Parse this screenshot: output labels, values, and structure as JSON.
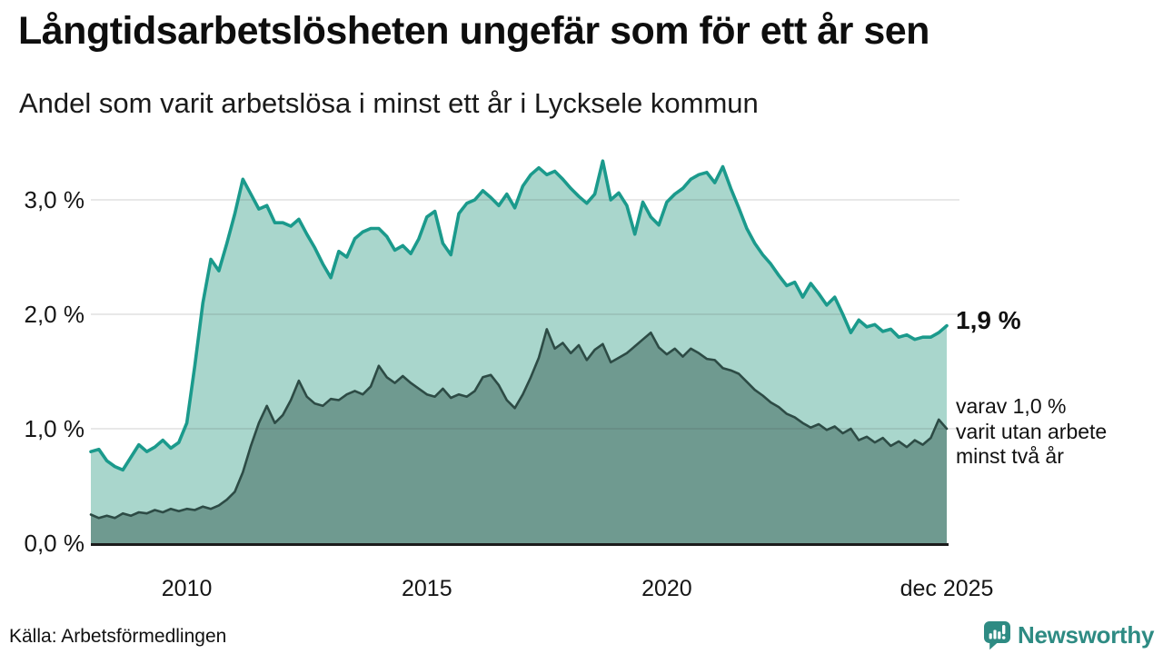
{
  "header": {
    "title": "Långtidsarbetslösheten ungefär som för ett år sen",
    "subtitle": "Andel som varit arbetslösa i minst ett år i Lycksele kommun"
  },
  "annotations": {
    "primary_value": "1,9 %",
    "secondary_note": "varav 1,0 %\nvarit utan arbete\nminst två år"
  },
  "footer": {
    "source": "Källa: Arbetsförmedlingen",
    "brand": "Newsworthy",
    "logo_icon": "newsworthy-speech-bubble-bar-chart-icon"
  },
  "colors": {
    "accent_teal_line": "#1b9a8c",
    "accent_teal_fill": "#a9d6cc",
    "dark_green_line": "#2d4b45",
    "dark_green_fill": "#6f9a90",
    "brand_teal": "#2e8b83",
    "axis_text": "#161616",
    "baseline": "#1b1b1b"
  },
  "chart_data": {
    "type": "area",
    "title": "Långtidsarbetslösheten ungefär som för ett år sen",
    "subtitle": "Andel som varit arbetslösa i minst ett år i Lycksele kommun",
    "unit": "%",
    "grid": true,
    "legend_position": "right-annotations",
    "x_start_year": 2008,
    "samples_per_year": 6,
    "ylim": [
      0,
      3.45
    ],
    "x_ticks": [
      {
        "label": "2010",
        "year": 2010
      },
      {
        "label": "2015",
        "year": 2015
      },
      {
        "label": "2020",
        "year": 2020
      },
      {
        "label": "dec 2025",
        "year": 2025.833
      }
    ],
    "y_ticks": [
      {
        "label": "0,0 %",
        "value": 0
      },
      {
        "label": "1,0 %",
        "value": 1
      },
      {
        "label": "2,0 %",
        "value": 2
      },
      {
        "label": "3,0 %",
        "value": 3
      }
    ],
    "series": [
      {
        "name": "Andel som varit arbetslösa i minst ett år",
        "end_label": "1,9 %",
        "end_value": 1.9,
        "line_color": "#1b9a8c",
        "fill_color": "#a9d6cc",
        "values": [
          0.8,
          0.82,
          0.72,
          0.67,
          0.64,
          0.75,
          0.86,
          0.8,
          0.84,
          0.9,
          0.83,
          0.88,
          1.05,
          1.55,
          2.1,
          2.48,
          2.38,
          2.62,
          2.88,
          3.18,
          3.05,
          2.92,
          2.95,
          2.8,
          2.8,
          2.77,
          2.83,
          2.7,
          2.58,
          2.44,
          2.32,
          2.55,
          2.5,
          2.66,
          2.72,
          2.75,
          2.75,
          2.68,
          2.56,
          2.6,
          2.53,
          2.66,
          2.85,
          2.9,
          2.62,
          2.52,
          2.88,
          2.97,
          3.0,
          3.08,
          3.02,
          2.95,
          3.05,
          2.93,
          3.12,
          3.22,
          3.28,
          3.22,
          3.25,
          3.18,
          3.1,
          3.03,
          2.97,
          3.05,
          3.34,
          3.0,
          3.06,
          2.95,
          2.7,
          2.98,
          2.85,
          2.78,
          2.98,
          3.05,
          3.1,
          3.18,
          3.22,
          3.24,
          3.15,
          3.29,
          3.1,
          2.93,
          2.75,
          2.62,
          2.52,
          2.44,
          2.34,
          2.25,
          2.28,
          2.15,
          2.27,
          2.18,
          2.08,
          2.15,
          2.0,
          1.84,
          1.95,
          1.89,
          1.91,
          1.85,
          1.87,
          1.8,
          1.82,
          1.78,
          1.8,
          1.8,
          1.84,
          1.9
        ]
      },
      {
        "name": "varav varit utan arbete minst två år",
        "end_label": "varav 1,0 % varit utan arbete minst två år",
        "end_value": 1.0,
        "line_color": "#2d4b45",
        "fill_color": "#6f9a90",
        "values": [
          0.25,
          0.22,
          0.24,
          0.22,
          0.26,
          0.24,
          0.27,
          0.26,
          0.29,
          0.27,
          0.3,
          0.28,
          0.3,
          0.29,
          0.32,
          0.3,
          0.33,
          0.38,
          0.45,
          0.62,
          0.85,
          1.05,
          1.2,
          1.05,
          1.12,
          1.25,
          1.42,
          1.28,
          1.22,
          1.2,
          1.26,
          1.25,
          1.3,
          1.33,
          1.3,
          1.37,
          1.55,
          1.45,
          1.4,
          1.46,
          1.4,
          1.35,
          1.3,
          1.28,
          1.35,
          1.27,
          1.3,
          1.28,
          1.33,
          1.45,
          1.47,
          1.38,
          1.25,
          1.18,
          1.3,
          1.45,
          1.62,
          1.87,
          1.7,
          1.75,
          1.66,
          1.73,
          1.6,
          1.69,
          1.74,
          1.58,
          1.62,
          1.66,
          1.72,
          1.78,
          1.84,
          1.71,
          1.65,
          1.7,
          1.63,
          1.7,
          1.66,
          1.61,
          1.6,
          1.53,
          1.51,
          1.48,
          1.41,
          1.34,
          1.29,
          1.23,
          1.19,
          1.13,
          1.1,
          1.05,
          1.01,
          1.04,
          0.99,
          1.02,
          0.96,
          1.0,
          0.9,
          0.93,
          0.88,
          0.92,
          0.85,
          0.89,
          0.84,
          0.9,
          0.86,
          0.92,
          1.08,
          1.0
        ]
      }
    ],
    "source": "Källa: Arbetsförmedlingen"
  }
}
